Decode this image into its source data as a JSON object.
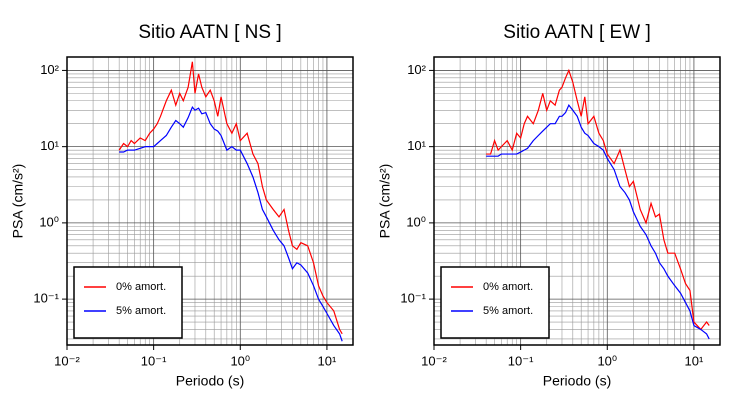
{
  "chart_data": [
    {
      "type": "line",
      "title": "Sitio AATN [ NS ]",
      "xlabel": "Periodo (s)",
      "ylabel": "PSA (cm/s²)",
      "log_x": true,
      "log_y": true,
      "grid": true,
      "legend": "lower left",
      "xlim": [
        0.01,
        20
      ],
      "ylim": [
        0.025,
        150
      ],
      "xticks": [
        {
          "value": 0.01,
          "label": "10⁻²"
        },
        {
          "value": 0.1,
          "label": "10⁻¹"
        },
        {
          "value": 1,
          "label": "10⁰"
        },
        {
          "value": 10,
          "label": "10¹"
        }
      ],
      "yticks": [
        {
          "value": 0.1,
          "label": "10⁻¹"
        },
        {
          "value": 1,
          "label": "10⁰"
        },
        {
          "value": 10,
          "label": "10¹"
        },
        {
          "value": 100,
          "label": "10²"
        }
      ],
      "xminorticks": [
        0.02,
        0.03,
        0.04,
        0.05,
        0.06,
        0.07,
        0.08,
        0.09,
        0.2,
        0.3,
        0.4,
        0.5,
        0.6,
        0.7,
        0.8,
        0.9,
        2,
        3,
        4,
        5,
        6,
        7,
        8,
        9,
        20
      ],
      "yminorticks": [
        0.03,
        0.04,
        0.05,
        0.06,
        0.07,
        0.08,
        0.09,
        0.2,
        0.3,
        0.4,
        0.5,
        0.6,
        0.7,
        0.8,
        0.9,
        2,
        3,
        4,
        5,
        6,
        7,
        8,
        9,
        20,
        30,
        40,
        50,
        60,
        70,
        80,
        90
      ],
      "x": [
        0.04,
        0.045,
        0.05,
        0.055,
        0.06,
        0.07,
        0.08,
        0.09,
        0.1,
        0.11,
        0.12,
        0.14,
        0.16,
        0.18,
        0.2,
        0.22,
        0.25,
        0.28,
        0.3,
        0.33,
        0.36,
        0.4,
        0.45,
        0.5,
        0.55,
        0.6,
        0.7,
        0.8,
        0.9,
        1.0,
        1.2,
        1.4,
        1.6,
        1.8,
        2.0,
        2.4,
        2.8,
        3.2,
        3.6,
        4,
        4.5,
        5,
        6,
        7,
        8,
        9,
        10,
        12,
        14,
        15
      ],
      "series": [
        {
          "name": "0% amort.",
          "color": "#ff0000",
          "values": [
            9,
            11,
            10,
            12,
            11,
            13,
            12,
            15,
            17,
            20,
            25,
            40,
            55,
            35,
            50,
            40,
            60,
            130,
            50,
            90,
            60,
            45,
            55,
            40,
            25,
            45,
            20,
            15,
            20,
            12,
            15,
            8,
            6,
            3,
            2,
            1.5,
            1.2,
            1.5,
            0.8,
            0.5,
            0.45,
            0.55,
            0.5,
            0.3,
            0.15,
            0.11,
            0.09,
            0.07,
            0.04,
            0.035
          ]
        },
        {
          "name": "5% amort.",
          "color": "#0000ff",
          "values": [
            8.5,
            8.5,
            9,
            9,
            9,
            9.5,
            10,
            10,
            10,
            11,
            12,
            14,
            18,
            22,
            20,
            18,
            24,
            33,
            30,
            32,
            27,
            28,
            20,
            17,
            16,
            14,
            9,
            10,
            9,
            9,
            6,
            4,
            2.5,
            1.5,
            1.2,
            0.8,
            0.6,
            0.5,
            0.35,
            0.25,
            0.3,
            0.28,
            0.22,
            0.15,
            0.1,
            0.08,
            0.065,
            0.045,
            0.035,
            0.028
          ]
        }
      ]
    },
    {
      "type": "line",
      "title": "Sitio AATN [ EW ]",
      "xlabel": "Periodo (s)",
      "ylabel": "PSA (cm/s²)",
      "log_x": true,
      "log_y": true,
      "grid": true,
      "legend": "lower left",
      "xlim": [
        0.01,
        20
      ],
      "ylim": [
        0.025,
        150
      ],
      "xticks": [
        {
          "value": 0.01,
          "label": "10⁻²"
        },
        {
          "value": 0.1,
          "label": "10⁻¹"
        },
        {
          "value": 1,
          "label": "10⁰"
        },
        {
          "value": 10,
          "label": "10¹"
        }
      ],
      "yticks": [
        {
          "value": 0.1,
          "label": "10⁻¹"
        },
        {
          "value": 1,
          "label": "10⁰"
        },
        {
          "value": 10,
          "label": "10¹"
        },
        {
          "value": 100,
          "label": "10²"
        }
      ],
      "xminorticks": [
        0.02,
        0.03,
        0.04,
        0.05,
        0.06,
        0.07,
        0.08,
        0.09,
        0.2,
        0.3,
        0.4,
        0.5,
        0.6,
        0.7,
        0.8,
        0.9,
        2,
        3,
        4,
        5,
        6,
        7,
        8,
        9,
        20
      ],
      "yminorticks": [
        0.03,
        0.04,
        0.05,
        0.06,
        0.07,
        0.08,
        0.09,
        0.2,
        0.3,
        0.4,
        0.5,
        0.6,
        0.7,
        0.8,
        0.9,
        2,
        3,
        4,
        5,
        6,
        7,
        8,
        9,
        20,
        30,
        40,
        50,
        60,
        70,
        80,
        90
      ],
      "x": [
        0.04,
        0.045,
        0.05,
        0.055,
        0.06,
        0.07,
        0.08,
        0.09,
        0.1,
        0.11,
        0.12,
        0.14,
        0.16,
        0.18,
        0.2,
        0.22,
        0.25,
        0.28,
        0.3,
        0.33,
        0.36,
        0.4,
        0.45,
        0.5,
        0.55,
        0.6,
        0.7,
        0.8,
        0.9,
        1.0,
        1.2,
        1.4,
        1.6,
        1.8,
        2.0,
        2.4,
        2.8,
        3.2,
        3.6,
        4,
        4.5,
        5,
        6,
        7,
        8,
        9,
        10,
        12,
        14,
        15
      ],
      "series": [
        {
          "name": "0% amort.",
          "color": "#ff0000",
          "values": [
            8,
            8,
            12,
            9,
            10,
            12,
            9,
            15,
            13,
            20,
            25,
            20,
            30,
            50,
            30,
            40,
            35,
            55,
            60,
            80,
            100,
            70,
            40,
            25,
            45,
            20,
            25,
            15,
            12,
            8,
            6,
            9,
            5,
            3,
            3.5,
            1.5,
            1,
            1.8,
            1.2,
            1.3,
            0.6,
            0.4,
            0.4,
            0.25,
            0.16,
            0.13,
            0.05,
            0.04,
            0.05,
            0.045
          ]
        },
        {
          "name": "5% amort.",
          "color": "#0000ff",
          "values": [
            7.5,
            7.5,
            7.5,
            7.5,
            8,
            8,
            8,
            8,
            8.5,
            9,
            9.5,
            12,
            14,
            16,
            18,
            20,
            20,
            25,
            25,
            28,
            35,
            30,
            25,
            18,
            15,
            14,
            11,
            10,
            9,
            7,
            5,
            3,
            2.5,
            2,
            1.4,
            0.9,
            0.7,
            0.5,
            0.4,
            0.3,
            0.25,
            0.2,
            0.15,
            0.12,
            0.09,
            0.07,
            0.045,
            0.04,
            0.035,
            0.03
          ]
        }
      ]
    }
  ]
}
